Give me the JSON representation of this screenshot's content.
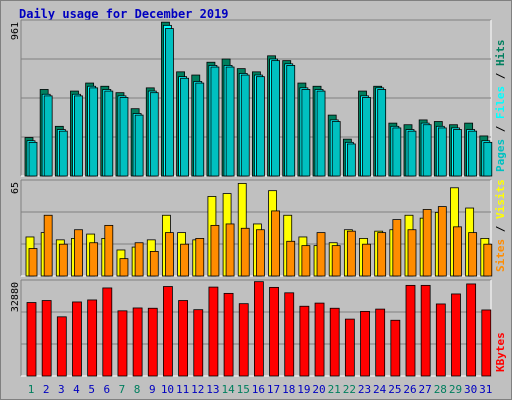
{
  "title": "Daily usage for December 2019",
  "colors": {
    "hits": "#007f5e",
    "files": "#00ffff",
    "pages": "#00c0c0",
    "visits": "#ffff00",
    "sites": "#ff8c00",
    "kbytes": "#ff0000",
    "weekend_day": "#007f5e",
    "weekday": "#0000c0",
    "title": "#0000c0"
  },
  "chart_data": [
    {
      "type": "bar",
      "categories": [
        "1",
        "2",
        "3",
        "4",
        "5",
        "6",
        "7",
        "8",
        "9",
        "10",
        "11",
        "12",
        "13",
        "14",
        "15",
        "16",
        "17",
        "18",
        "19",
        "20",
        "21",
        "22",
        "23",
        "24",
        "25",
        "26",
        "27",
        "28",
        "29",
        "30",
        "31"
      ],
      "weekend_days": [
        "1",
        "7",
        "8",
        "14",
        "15",
        "21",
        "22",
        "28",
        "29"
      ],
      "ymax_label": "961",
      "ylim": [
        0,
        961
      ],
      "legend": [
        "Pages",
        "Files",
        "Hits"
      ],
      "series": [
        {
          "name": "Hits",
          "values": [
            240,
            540,
            310,
            530,
            580,
            560,
            520,
            420,
            550,
            960,
            650,
            630,
            710,
            730,
            670,
            650,
            750,
            720,
            580,
            560,
            380,
            230,
            530,
            560,
            330,
            320,
            350,
            340,
            320,
            330,
            250
          ]
        },
        {
          "name": "Files",
          "values": [
            220,
            510,
            290,
            510,
            560,
            540,
            500,
            390,
            530,
            940,
            620,
            590,
            690,
            690,
            640,
            630,
            730,
            700,
            550,
            540,
            350,
            210,
            500,
            550,
            310,
            290,
            330,
            310,
            300,
            290,
            220
          ]
        },
        {
          "name": "Pages",
          "values": [
            210,
            500,
            280,
            500,
            550,
            530,
            490,
            380,
            520,
            920,
            610,
            580,
            680,
            680,
            630,
            620,
            720,
            690,
            540,
            530,
            340,
            200,
            490,
            540,
            300,
            280,
            320,
            300,
            290,
            280,
            210
          ]
        }
      ]
    },
    {
      "type": "bar",
      "categories": [
        "1",
        "2",
        "3",
        "4",
        "5",
        "6",
        "7",
        "8",
        "9",
        "10",
        "11",
        "12",
        "13",
        "14",
        "15",
        "16",
        "17",
        "18",
        "19",
        "20",
        "21",
        "22",
        "23",
        "24",
        "25",
        "26",
        "27",
        "28",
        "29",
        "30",
        "31"
      ],
      "ymax_label": "65",
      "ylim": [
        0,
        65
      ],
      "legend": [
        "Sites",
        "Visits"
      ],
      "series": [
        {
          "name": "Visits",
          "values": [
            27,
            30,
            25,
            26,
            29,
            26,
            18,
            20,
            25,
            42,
            30,
            25,
            55,
            57,
            64,
            36,
            59,
            42,
            27,
            21,
            23,
            32,
            26,
            31,
            32,
            42,
            40,
            44,
            61,
            47,
            26
          ]
        },
        {
          "name": "Sites",
          "values": [
            19,
            42,
            22,
            32,
            23,
            35,
            12,
            23,
            17,
            30,
            22,
            26,
            35,
            36,
            33,
            32,
            45,
            24,
            21,
            30,
            21,
            31,
            22,
            30,
            39,
            32,
            46,
            48,
            34,
            30,
            22
          ]
        }
      ]
    },
    {
      "type": "bar",
      "categories": [
        "1",
        "2",
        "3",
        "4",
        "5",
        "6",
        "7",
        "8",
        "9",
        "10",
        "11",
        "12",
        "13",
        "14",
        "15",
        "16",
        "17",
        "18",
        "19",
        "20",
        "21",
        "22",
        "23",
        "24",
        "25",
        "26",
        "27",
        "28",
        "29",
        "30",
        "31"
      ],
      "ymax_label": "32880",
      "ylim": [
        0,
        32880
      ],
      "legend": [
        "KBytes"
      ],
      "series": [
        {
          "name": "KBytes",
          "values": [
            25700,
            26400,
            20700,
            25900,
            26600,
            30800,
            22800,
            23800,
            23700,
            31300,
            26400,
            23200,
            31100,
            28900,
            25300,
            33000,
            31000,
            29100,
            24400,
            25500,
            23700,
            19900,
            22600,
            23400,
            19500,
            31700,
            31700,
            25200,
            28700,
            32200,
            23100
          ]
        }
      ]
    }
  ]
}
